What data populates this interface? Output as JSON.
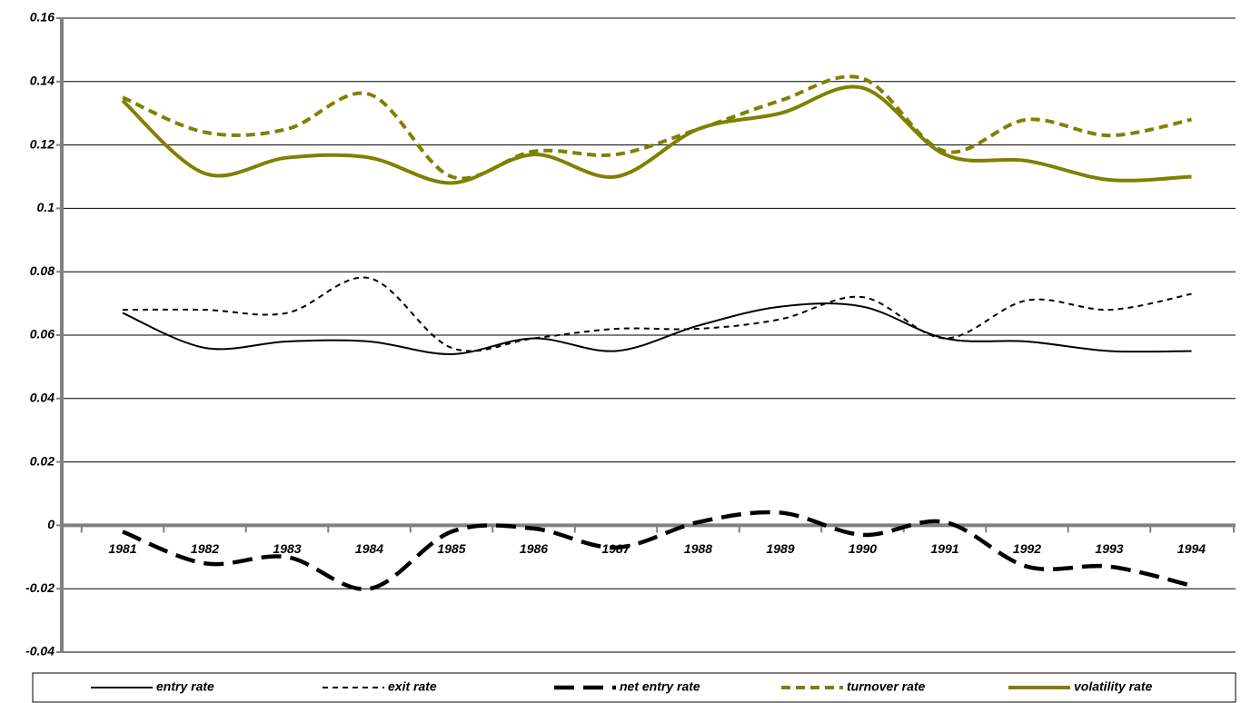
{
  "chart_data": {
    "type": "line",
    "categories": [
      "1981",
      "1982",
      "1983",
      "1984",
      "1985",
      "1986",
      "1987",
      "1988",
      "1989",
      "1990",
      "1991",
      "1992",
      "1993",
      "1994"
    ],
    "ylim": [
      -0.04,
      0.16
    ],
    "yticks": [
      -0.04,
      -0.02,
      0,
      0.02,
      0.04,
      0.06,
      0.08,
      0.1,
      0.12,
      0.14,
      0.16
    ],
    "grid": true,
    "legend": "bottom",
    "series": [
      {
        "name": "entry rate",
        "color": "#000000",
        "values": [
          0.067,
          0.056,
          0.058,
          0.058,
          0.054,
          0.059,
          0.055,
          0.063,
          0.069,
          0.069,
          0.059,
          0.058,
          0.055,
          0.055
        ]
      },
      {
        "name": "exit rate",
        "color": "#000000",
        "values": [
          0.068,
          0.068,
          0.067,
          0.078,
          0.056,
          0.059,
          0.062,
          0.062,
          0.065,
          0.072,
          0.059,
          0.071,
          0.068,
          0.073
        ]
      },
      {
        "name": "net entry rate",
        "color": "#000000",
        "values": [
          -0.002,
          -0.012,
          -0.01,
          -0.02,
          -0.002,
          -0.001,
          -0.007,
          0.001,
          0.004,
          -0.003,
          0.001,
          -0.013,
          -0.013,
          -0.019
        ]
      },
      {
        "name": "turnover rate",
        "color": "#808000",
        "values": [
          0.135,
          0.124,
          0.125,
          0.136,
          0.11,
          0.118,
          0.117,
          0.125,
          0.134,
          0.141,
          0.118,
          0.128,
          0.123,
          0.128
        ]
      },
      {
        "name": "volatility rate",
        "color": "#808000",
        "values": [
          0.134,
          0.111,
          0.116,
          0.116,
          0.108,
          0.117,
          0.11,
          0.125,
          0.13,
          0.138,
          0.117,
          0.115,
          0.109,
          0.11
        ]
      }
    ]
  }
}
